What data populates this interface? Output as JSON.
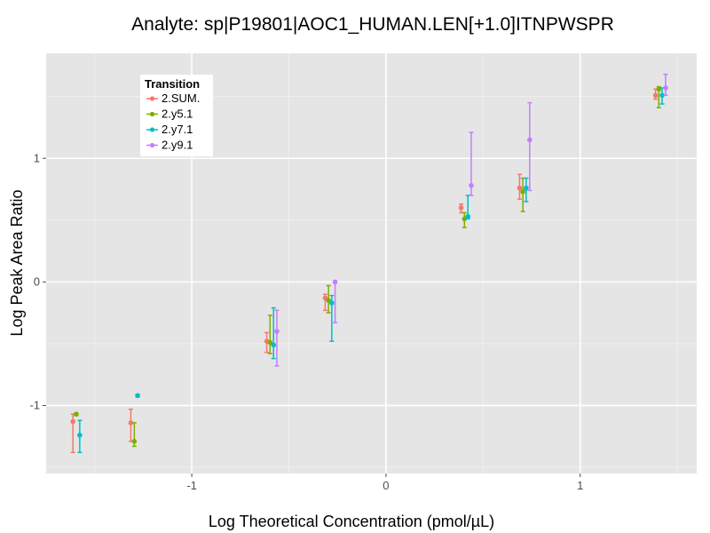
{
  "chart_data": {
    "type": "scatter",
    "title": "Analyte: sp|P19801|AOC1_HUMAN.LEN[+1.0]ITNPWSPR",
    "xlabel": "Log Theoretical Concentration (pmol/µL)",
    "ylabel": "Log Peak Area Ratio",
    "xlim": [
      -1.75,
      1.6
    ],
    "ylim": [
      -1.55,
      1.85
    ],
    "x_ticks": [
      -1,
      0,
      1
    ],
    "x_tick_labels": [
      "-1",
      "0",
      "1"
    ],
    "y_ticks": [
      -1,
      0,
      1
    ],
    "y_tick_labels": [
      "-1",
      "0",
      "1"
    ],
    "grid": true,
    "legend": {
      "title": "Transition",
      "placement": "top-left inside"
    },
    "series": [
      {
        "name": "2.SUM.",
        "color": "#f8766d",
        "points": [
          {
            "x": -1.612,
            "y": -1.13,
            "ymin": -1.38,
            "ymax": -1.07
          },
          {
            "x": -1.314,
            "y": -1.14,
            "ymin": -1.29,
            "ymax": -1.03
          },
          {
            "x": -0.614,
            "y": -0.48,
            "ymin": -0.57,
            "ymax": -0.41
          },
          {
            "x": -0.313,
            "y": -0.13,
            "ymin": -0.23,
            "ymax": -0.1
          },
          {
            "x": 0.387,
            "y": 0.6,
            "ymin": 0.56,
            "ymax": 0.63
          },
          {
            "x": 0.688,
            "y": 0.76,
            "ymin": 0.67,
            "ymax": 0.87
          },
          {
            "x": 1.388,
            "y": 1.51,
            "ymin": 1.48,
            "ymax": 1.56
          }
        ]
      },
      {
        "name": "2.y5.1",
        "color": "#7cae00",
        "points": [
          {
            "x": -1.595,
            "y": -1.07,
            "ymin": -1.08,
            "ymax": -1.06
          },
          {
            "x": -1.296,
            "y": -1.29,
            "ymin": -1.33,
            "ymax": -1.14
          },
          {
            "x": -0.597,
            "y": -0.49,
            "ymin": -0.58,
            "ymax": -0.27
          },
          {
            "x": -0.296,
            "y": -0.15,
            "ymin": -0.25,
            "ymax": -0.03
          },
          {
            "x": 0.404,
            "y": 0.51,
            "ymin": 0.44,
            "ymax": 0.56
          },
          {
            "x": 0.705,
            "y": 0.73,
            "ymin": 0.57,
            "ymax": 0.84
          },
          {
            "x": 1.405,
            "y": 1.56,
            "ymin": 1.41,
            "ymax": 1.58
          }
        ]
      },
      {
        "name": "2.y7.1",
        "color": "#00bfc4",
        "points": [
          {
            "x": -1.577,
            "y": -1.24,
            "ymin": -1.38,
            "ymax": -1.12
          },
          {
            "x": -1.279,
            "y": -0.92,
            "ymin": -0.93,
            "ymax": -0.91
          },
          {
            "x": -0.579,
            "y": -0.51,
            "ymin": -0.62,
            "ymax": -0.21
          },
          {
            "x": -0.279,
            "y": -0.17,
            "ymin": -0.48,
            "ymax": -0.11
          },
          {
            "x": 0.422,
            "y": 0.53,
            "ymin": 0.51,
            "ymax": 0.7
          },
          {
            "x": 0.722,
            "y": 0.76,
            "ymin": 0.65,
            "ymax": 0.84
          },
          {
            "x": 1.422,
            "y": 1.51,
            "ymin": 1.44,
            "ymax": 1.57
          }
        ]
      },
      {
        "name": "2.y9.1",
        "color": "#c77cff",
        "points": [
          {
            "x": -0.562,
            "y": -0.4,
            "ymin": -0.68,
            "ymax": -0.23
          },
          {
            "x": -0.262,
            "y": 0.0,
            "ymin": -0.33,
            "ymax": 0.0
          },
          {
            "x": 0.439,
            "y": 0.78,
            "ymin": 0.7,
            "ymax": 1.21
          },
          {
            "x": 0.74,
            "y": 1.15,
            "ymin": 0.74,
            "ymax": 1.45
          },
          {
            "x": 1.44,
            "y": 1.57,
            "ymin": 1.51,
            "ymax": 1.68
          }
        ]
      }
    ]
  }
}
